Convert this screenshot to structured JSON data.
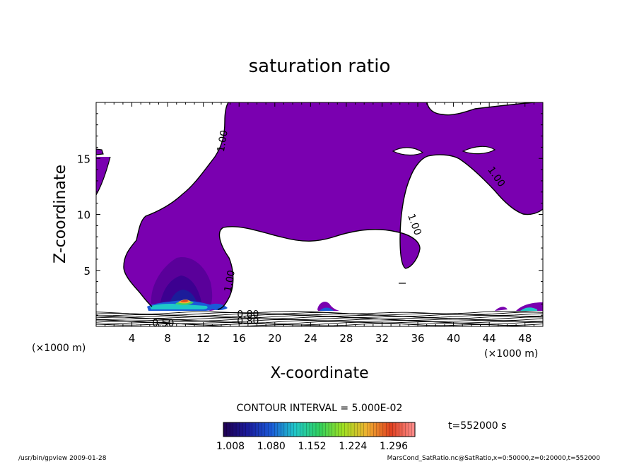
{
  "chart_data": {
    "type": "heatmap",
    "title": "saturation ratio",
    "xlabel": "X-coordinate",
    "ylabel": "Z-coordinate",
    "x_unit": "(×1000 m)",
    "x_unit_right": "(×1000 m)",
    "xlim": [
      0,
      50
    ],
    "ylim": [
      0,
      20
    ],
    "x_ticks": [
      4,
      8,
      12,
      16,
      20,
      24,
      28,
      32,
      36,
      40,
      44,
      48
    ],
    "y_ticks": [
      5,
      10,
      15
    ],
    "contour_interval_text": "CONTOUR INTERVAL = 5.000E-02",
    "time_text": "t=552000 s",
    "colorbar": {
      "colors": [
        "#200050",
        "#1a1a9a",
        "#1a5ad8",
        "#20c8c8",
        "#30d060",
        "#a0e020",
        "#f0b030",
        "#e04020",
        "#ff9090"
      ],
      "tick_labels": [
        "1.008",
        "1.080",
        "1.152",
        "1.224",
        "1.296"
      ]
    },
    "contour_labels": [
      {
        "text": "1.00",
        "x": 14.5,
        "z": 16.5,
        "angle": -80
      },
      {
        "text": "1.00",
        "x": 44.5,
        "z": 13.2,
        "angle": 55
      },
      {
        "text": "1.00",
        "x": 35.3,
        "z": 9.0,
        "angle": 70
      },
      {
        "text": "1.00",
        "x": 15.3,
        "z": 4.0,
        "angle": -80
      },
      {
        "text": "0.50",
        "x": 7.5,
        "z": 0.0,
        "angle": 0
      },
      {
        "text": "0.80",
        "x": 17.0,
        "z": 0.8,
        "angle": 0
      },
      {
        "text": "0.80",
        "x": 17.0,
        "z": 0.2,
        "angle": 0
      }
    ],
    "footer_left": "/usr/bin/gpview  2009-01-28",
    "footer_right": "MarsCond_SatRatio.nc@SatRatio,x=0:50000,z=0:20000,t=552000"
  },
  "colors": {
    "supersaturated_fill": "#7a00b0",
    "contour": "#000000"
  }
}
